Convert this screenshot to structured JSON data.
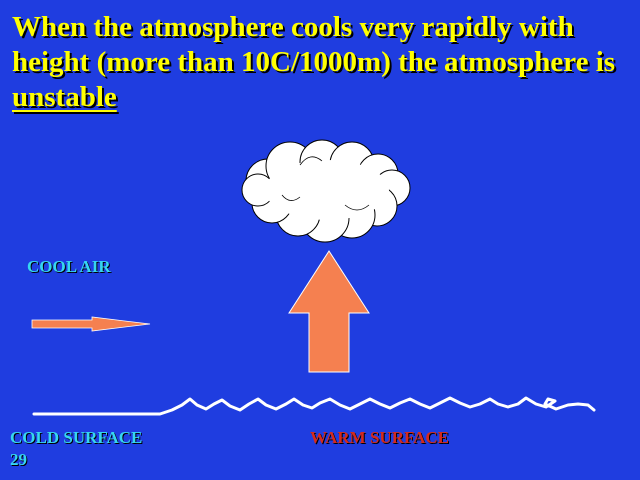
{
  "title": {
    "text_before": "When the atmosphere cools very rapidly with height (more than 10C/1000m) the atmosphere is ",
    "text_underlined": "unstable"
  },
  "labels": {
    "cool_air": "COOL AIR",
    "cold_surface": "COLD  SURFACE",
    "warm_surface": "WARM SURFACE",
    "slide_number": "29"
  },
  "colors": {
    "background": "#1f3de0",
    "title": "#ffff00",
    "cyan_label": "#36d6f0",
    "warm_label": "#d42a1e",
    "arrow_fill": "#f58050",
    "cloud_fill": "#ffffff",
    "surface_line": "#ffffff"
  },
  "icons": {
    "cloud": "cumulus-cloud-icon",
    "updraft_arrow": "up-arrow-icon",
    "wind_arrow": "right-arrow-icon"
  }
}
